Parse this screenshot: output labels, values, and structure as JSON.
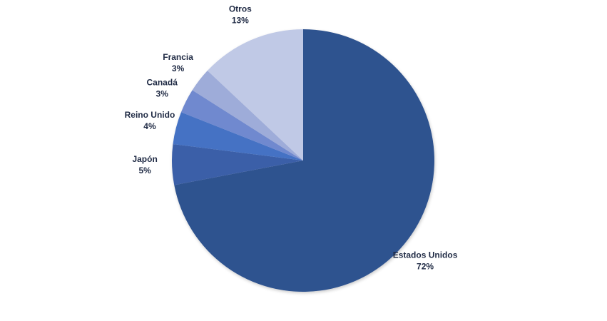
{
  "chart_data": {
    "type": "pie",
    "categories": [
      "Estados Unidos",
      "Japón",
      "Reino Unido",
      "Canadá",
      "Francia",
      "Otros"
    ],
    "values": [
      72,
      5,
      4,
      3,
      3,
      13
    ],
    "value_labels": [
      "72%",
      "5%",
      "4%",
      "3%",
      "3%",
      "13%"
    ],
    "colors": [
      "#2f528f",
      "#3a5ea8",
      "#4472c4",
      "#6f89cf",
      "#9eacd9",
      "#c0c9e6"
    ]
  }
}
